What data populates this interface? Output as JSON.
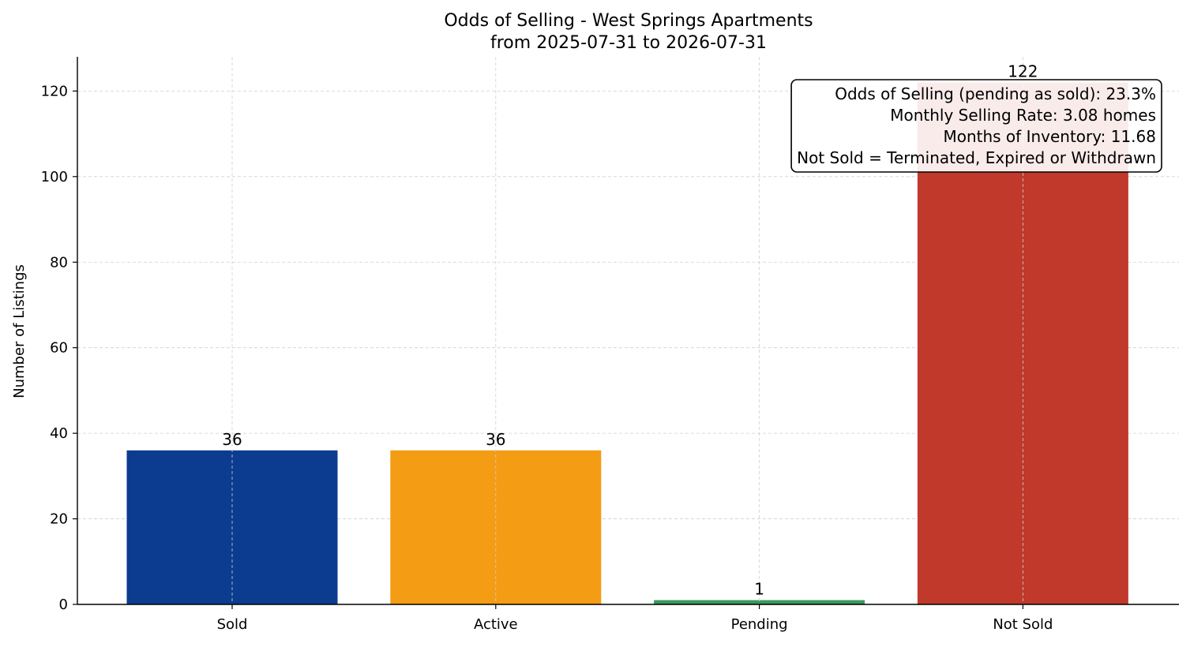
{
  "chart_data": {
    "type": "bar",
    "title": "Odds of Selling - West Springs Apartments",
    "subtitle": "from 2025-07-31 to 2026-07-31",
    "xlabel": "",
    "ylabel": "Number of Listings",
    "categories": [
      "Sold",
      "Active",
      "Pending",
      "Not Sold"
    ],
    "values": [
      36,
      36,
      1,
      122
    ],
    "value_labels": [
      "36",
      "36",
      "1",
      "122"
    ],
    "colors": [
      "#0b3c8f",
      "#f39c14",
      "#3a9a5b",
      "#c0392b"
    ],
    "ylim": [
      0,
      128
    ],
    "yticks": [
      0,
      20,
      40,
      60,
      80,
      100,
      120
    ],
    "ytick_labels": [
      "0",
      "20",
      "40",
      "60",
      "80",
      "100",
      "120"
    ],
    "grid": true,
    "annotation": {
      "lines": [
        "Odds of Selling (pending as sold): 23.3%",
        "Monthly Selling Rate: 3.08 homes",
        "Months of Inventory: 11.68",
        "Not Sold = Terminated, Expired or Withdrawn"
      ],
      "placement": "top-right"
    }
  }
}
